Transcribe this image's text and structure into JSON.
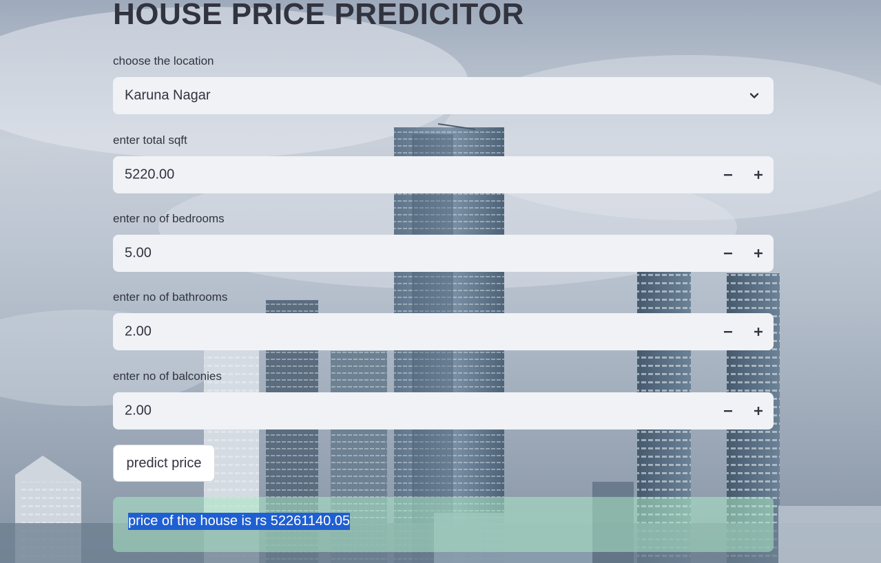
{
  "page": {
    "title": "HOUSE PRICE PREDICITOR"
  },
  "location": {
    "label": "choose the location",
    "selected": "Karuna Nagar"
  },
  "sqft": {
    "label": "enter total sqft",
    "value": "5220.00"
  },
  "bedrooms": {
    "label": "enter no of bedrooms",
    "value": "5.00"
  },
  "bathrooms": {
    "label": "enter no of bathrooms",
    "value": "2.00"
  },
  "balconies": {
    "label": "enter no of balconies",
    "value": "2.00"
  },
  "predict": {
    "label": "predict price"
  },
  "result": {
    "text": "price of the house is rs 52261140.05"
  },
  "colors": {
    "input_bg": "#f0f2f6",
    "text": "#31333f",
    "success_bg": "#ace8c4",
    "selection": "#1f5fd1"
  }
}
